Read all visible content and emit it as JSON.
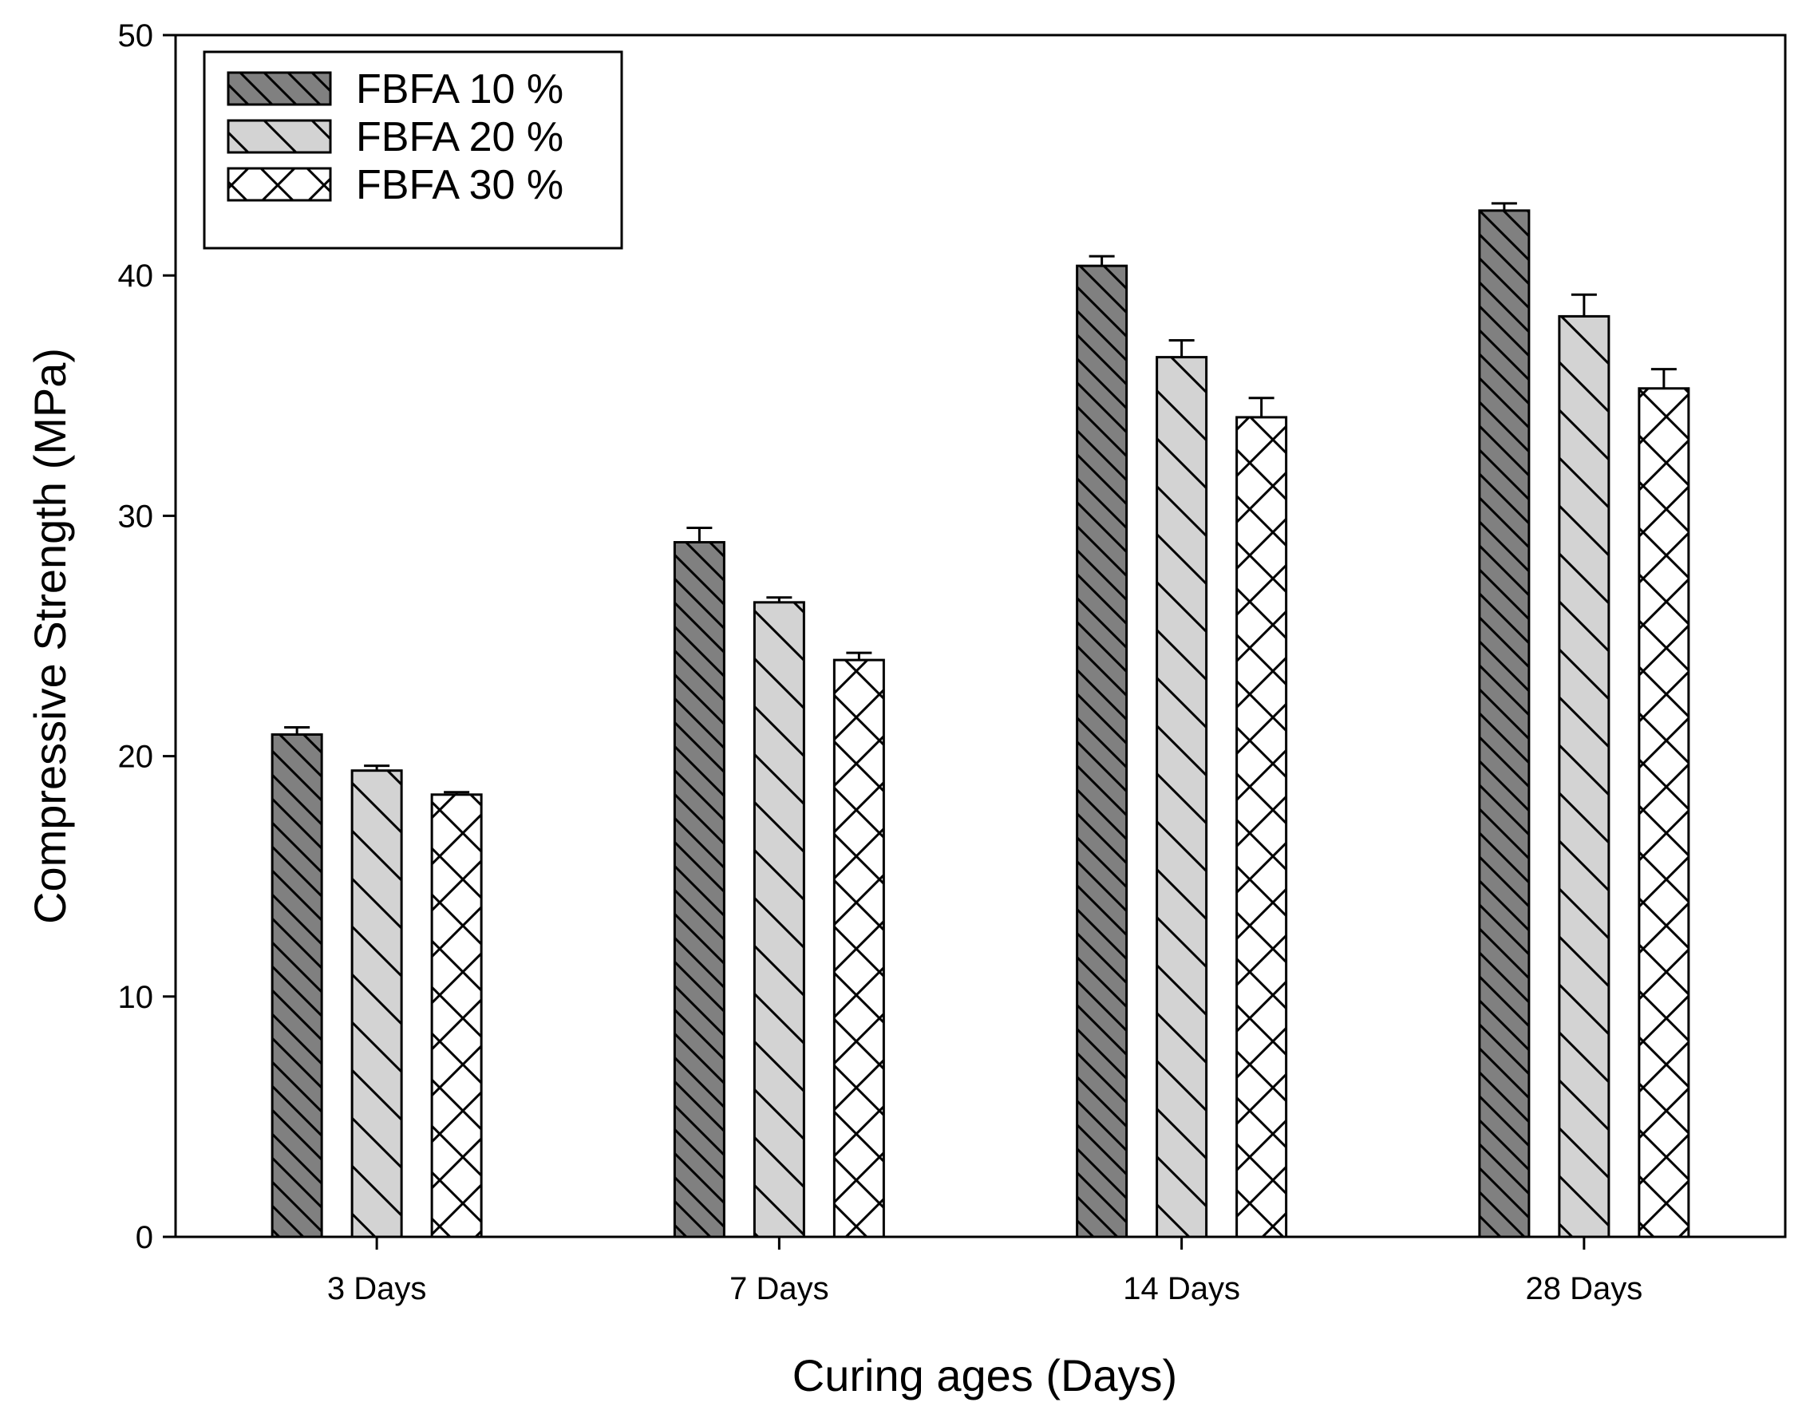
{
  "chart_data": {
    "type": "bar",
    "title": "",
    "xlabel": "Curing ages (Days)",
    "ylabel": "Compressive Strength (MPa)",
    "ylim": [
      0,
      50
    ],
    "yticks": [
      0,
      10,
      20,
      30,
      40,
      50
    ],
    "categories": [
      "3 Days",
      "7 Days",
      "14 Days",
      "28 Days"
    ],
    "series": [
      {
        "name": "FBFA 10 %",
        "values": [
          20.9,
          28.9,
          40.4,
          42.7
        ],
        "errors": [
          0.3,
          0.6,
          0.4,
          0.3
        ],
        "fill": "#808080",
        "pattern": "hatch-back"
      },
      {
        "name": "FBFA 20 %",
        "values": [
          19.4,
          26.4,
          36.6,
          38.3
        ],
        "errors": [
          0.2,
          0.2,
          0.7,
          0.9
        ],
        "fill": "#d3d3d3",
        "pattern": "hatch-back"
      },
      {
        "name": "FBFA 30 %",
        "values": [
          18.4,
          24.0,
          34.1,
          35.3
        ],
        "errors": [
          0.1,
          0.3,
          0.8,
          0.8
        ],
        "fill": "#ffffff",
        "pattern": "crosshatch"
      }
    ],
    "legend_position": "top-left",
    "error_bars": true
  }
}
